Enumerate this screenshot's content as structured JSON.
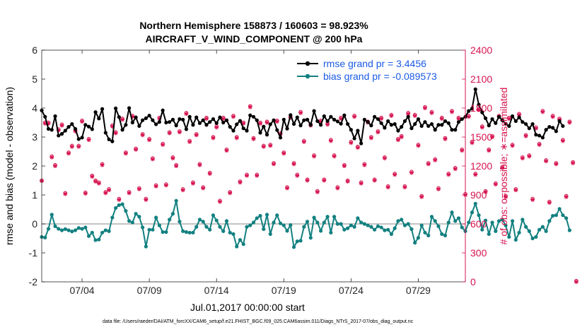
{
  "chart_data": {
    "type": "line",
    "title": "Northern Hemisphere 158873 / 160603 = 98.923%",
    "subtitle": "AIRCRAFT_V_WIND_COMPONENT @ 200 hPa",
    "ylabel": "rmse and bias (model - observation)",
    "ylabel_right": "# of obs: o=possible; ∗=assimilated",
    "xlabel": "Jul.01,2017 00:00:00 start",
    "footer": "data file: /Users/raeder/DAI/ATM_forcXX/CAM6_setup/f.e21.FHIST_BGC.f09_025.CAM6assim.011/Diags_NTrS_2017-07/obs_diag_output.nc",
    "ylim": [
      -2,
      6
    ],
    "ylim_right": [
      0,
      2400
    ],
    "xlim": [
      1.0,
      32.5
    ],
    "y_ticks": [
      "-2",
      "-1",
      "0",
      "1",
      "2",
      "3",
      "4",
      "5",
      "6"
    ],
    "y_right_ticks": [
      "0",
      "300",
      "600",
      "900",
      "1200",
      "1500",
      "1800",
      "2100",
      "2400"
    ],
    "x_ticks": [
      {
        "pos": 4,
        "label": "07/04"
      },
      {
        "pos": 9,
        "label": "07/09"
      },
      {
        "pos": 14,
        "label": "07/14"
      },
      {
        "pos": 19,
        "label": "07/19"
      },
      {
        "pos": 24,
        "label": "07/24"
      },
      {
        "pos": 29,
        "label": "07/29"
      }
    ],
    "legend": [
      {
        "name": "rmse",
        "label": "rmse grand pr = 3.4456",
        "color": "#000000"
      },
      {
        "name": "bias",
        "label": "bias grand pr = -0.089573",
        "color": "#138080"
      }
    ],
    "colors": {
      "rmse": "#000000",
      "bias": "#138080",
      "obs": "#d6134f",
      "zero_line": "#b0b0b0"
    },
    "x_start": 1.0,
    "x_step": 0.25,
    "series": [
      {
        "name": "rmse",
        "axis": "left",
        "values": [
          3.92,
          3.7,
          3.28,
          3.25,
          3.72,
          3.05,
          3.11,
          3.22,
          3.35,
          3.45,
          3.28,
          2.93,
          2.98,
          3.42,
          3.36,
          3.27,
          3.86,
          3.64,
          3.97,
          3.15,
          2.92,
          2.85,
          3.99,
          3.69,
          3.25,
          3.42,
          4.0,
          3.5,
          3.68,
          3.38,
          3.58,
          3.65,
          3.74,
          3.58,
          3.44,
          3.52,
          3.92,
          3.5,
          3.52,
          3.6,
          3.4,
          3.62,
          3.6,
          3.27,
          3.7,
          3.42,
          3.68,
          3.48,
          3.58,
          3.42,
          3.52,
          3.62,
          3.48,
          3.68,
          3.5,
          3.58,
          3.35,
          3.22,
          3.44,
          3.56,
          3.3,
          3.22,
          3.75,
          3.7,
          3.58,
          3.15,
          3.36,
          3.08,
          3.44,
          3.58,
          3.24,
          2.98,
          3.6,
          3.29,
          3.76,
          3.45,
          3.68,
          3.4,
          3.58,
          3.6,
          3.42,
          3.9,
          3.55,
          3.42,
          3.72,
          3.55,
          3.7,
          3.6,
          3.54,
          3.46,
          3.75,
          3.45,
          3.25,
          2.95,
          3.22,
          2.78,
          3.6,
          3.52,
          3.4,
          3.7,
          3.62,
          3.48,
          3.32,
          3.55,
          3.42,
          3.45,
          3.22,
          3.35,
          3.55,
          3.7,
          3.3,
          3.45,
          3.62,
          3.38,
          3.52,
          3.38,
          3.45,
          3.25,
          3.42,
          3.42,
          3.55,
          3.48,
          3.25,
          3.25,
          3.52,
          3.62,
          3.7,
          3.9,
          3.98,
          4.65,
          4.12,
          3.85,
          3.65,
          3.4,
          3.62,
          3.48,
          3.7,
          3.58,
          3.46,
          3.38,
          3.72,
          3.55,
          3.68,
          3.52,
          3.45,
          3.3,
          3.45,
          3.08,
          3.05,
          2.98,
          3.25,
          3.35,
          3.32,
          3.2,
          3.55,
          3.38
        ]
      },
      {
        "name": "bias",
        "axis": "left",
        "values": [
          -0.45,
          -0.47,
          -0.17,
          0.32,
          -0.08,
          -0.17,
          -0.22,
          -0.18,
          -0.22,
          -0.26,
          -0.22,
          -0.14,
          -0.17,
          -0.12,
          -0.42,
          -0.3,
          -0.56,
          -0.54,
          -0.3,
          -0.22,
          -0.25,
          0.22,
          0.55,
          0.65,
          0.68,
          0.45,
          0.1,
          0.05,
          0.35,
          0.25,
          -0.12,
          -0.78,
          -0.2,
          -0.2,
          0.22,
          -0.05,
          -0.28,
          -0.28,
          0.15,
          0.35,
          0.8,
          0.08,
          -0.25,
          -0.28,
          -0.3,
          -0.3,
          -0.1,
          0.15,
          0.08,
          -0.1,
          -0.2,
          0.3,
          0.12,
          -0.1,
          -0.25,
          0.1,
          -0.3,
          -0.35,
          -0.78,
          -0.55,
          -0.7,
          -0.1,
          -0.05,
          0.05,
          0.2,
          0.28,
          -0.18,
          0.32,
          -0.35,
          0.05,
          0.3,
          0.02,
          -0.05,
          -0.24,
          -0.04,
          -0.8,
          -0.6,
          -0.58,
          -0.1,
          0.08,
          -0.48,
          0.22,
          0.05,
          -0.24,
          0.05,
          0.25,
          -0.3,
          0.25,
          0.0,
          0.0,
          -0.2,
          -0.15,
          -0.05,
          -0.1,
          0.2,
          0.05,
          0.0,
          -0.05,
          -0.1,
          -0.2,
          -0.08,
          -0.12,
          -0.22,
          -0.2,
          -0.35,
          -0.15,
          0.1,
          0.15,
          -0.05,
          0.0,
          -0.18,
          -0.65,
          -0.48,
          -0.05,
          -0.3,
          -0.4,
          0.25,
          0.1,
          -0.08,
          -0.35,
          -0.4,
          0.05,
          0.4,
          0.1,
          0.2,
          -0.12,
          -0.25,
          0.05,
          0.4,
          0.7,
          0.3,
          -0.2,
          0.12,
          -0.35,
          0.05,
          -0.25,
          0.1,
          0.15,
          -0.05,
          -0.45,
          0.1,
          -0.55,
          -0.3,
          0.15,
          -0.1,
          -0.25,
          -0.5,
          -0.45,
          -0.2,
          -0.1,
          -0.25,
          0.1,
          0.28,
          0.3,
          0.52,
          0.3,
          0.2,
          -0.22
        ]
      },
      {
        "name": "assimilated",
        "axis": "right",
        "values": [
          1045,
          1640,
          1640,
          1290,
          1200,
          1570,
          1620,
          910,
          1330,
          1400,
          1560,
          1400,
          1660,
          915,
          1470,
          1090,
          1040,
          1020,
          1210,
          920,
          950,
          1610,
          1540,
          850,
          1680,
          1330,
          920,
          1710,
          1370,
          960,
          1520,
          850,
          1470,
          1270,
          990,
          1690,
          1420,
          1000,
          1540,
          1280,
          1200,
          1550,
          950,
          1740,
          1450,
          1020,
          1520,
          1210,
          970,
          1690,
          1120,
          1490,
          1600,
          830,
          1690,
          1360,
          920,
          1710,
          1490,
          1030,
          1640,
          1100,
          1810,
          1480,
          1100,
          1640,
          1400,
          1650,
          1410,
          1220,
          1660,
          1530,
          1330,
          970,
          1700,
          1220,
          1100,
          1750,
          1450,
          1050,
          1620,
          1300,
          930,
          1660,
          1050,
          1630,
          1460,
          1300,
          970,
          1690,
          1200,
          1040,
          1440,
          1710,
          1390,
          1020,
          1210,
          1650,
          1490,
          1050,
          1550,
          1690,
          1280,
          980,
          1720,
          1110,
          1470,
          1500,
          980,
          1740,
          1130,
          1720,
          1410,
          880,
          1800,
          1220,
          1750,
          1260,
          960,
          1690,
          1480,
          1110,
          1760,
          1170,
          1690,
          1360,
          900,
          1710,
          1440,
          1110,
          1780,
          1600,
          930,
          1360,
          1500,
          1010,
          1710,
          1180,
          880,
          1690,
          1410,
          950,
          1730,
          1280,
          1510,
          1300,
          850,
          1590,
          1420,
          1760,
          1250,
          820,
          1710,
          1220,
          1680,
          1460,
          880,
          1650,
          1230,
          0
        ]
      },
      {
        "name": "possible",
        "axis": "right",
        "values": [
          1050,
          1650,
          1650,
          1300,
          1210,
          1580,
          1630,
          920,
          1340,
          1410,
          1570,
          1410,
          1670,
          925,
          1480,
          1100,
          1050,
          1030,
          1220,
          930,
          960,
          1620,
          1550,
          860,
          1690,
          1340,
          930,
          1720,
          1380,
          970,
          1530,
          860,
          1480,
          1280,
          1000,
          1700,
          1430,
          1010,
          1550,
          1290,
          1210,
          1560,
          960,
          1750,
          1460,
          1030,
          1530,
          1220,
          980,
          1700,
          1130,
          1500,
          1610,
          840,
          1700,
          1370,
          930,
          1720,
          1500,
          1040,
          1650,
          1110,
          1820,
          1490,
          1110,
          1650,
          1410,
          1660,
          1420,
          1230,
          1670,
          1540,
          1340,
          980,
          1710,
          1230,
          1110,
          1760,
          1460,
          1060,
          1630,
          1310,
          940,
          1670,
          1060,
          1640,
          1470,
          1310,
          980,
          1700,
          1210,
          1050,
          1450,
          1720,
          1400,
          1030,
          1220,
          1660,
          1500,
          1060,
          1560,
          1700,
          1290,
          990,
          1730,
          1120,
          1480,
          1510,
          990,
          1750,
          1140,
          1730,
          1420,
          890,
          1810,
          1230,
          1760,
          1270,
          970,
          1700,
          1490,
          1120,
          1770,
          1180,
          1700,
          1370,
          910,
          1720,
          1450,
          1120,
          1790,
          1610,
          940,
          1370,
          1510,
          1020,
          1720,
          1190,
          890,
          1700,
          1420,
          960,
          1740,
          1290,
          1520,
          1310,
          860,
          1600,
          1430,
          1770,
          1260,
          830,
          1720,
          1230,
          1690,
          1470,
          890,
          1660,
          1240,
          10
        ]
      }
    ]
  }
}
